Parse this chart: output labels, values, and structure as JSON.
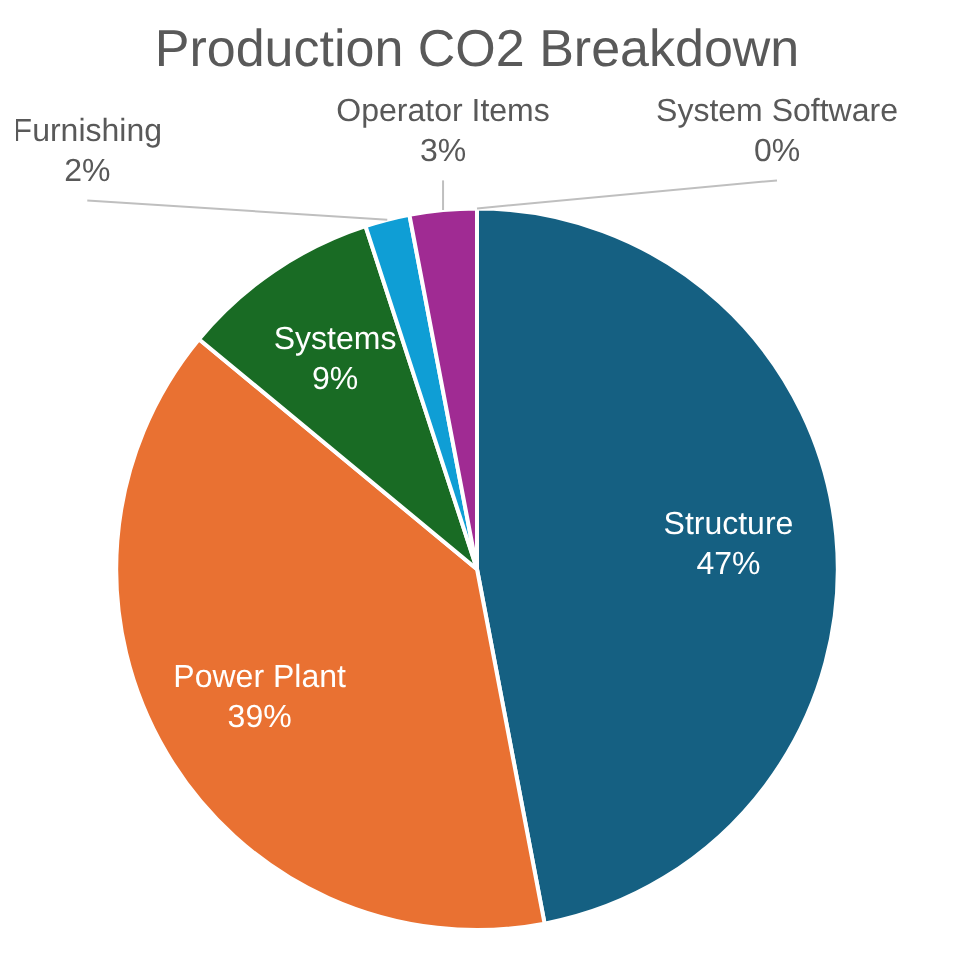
{
  "chart_data": {
    "type": "pie",
    "title": "Production CO2 Breakdown",
    "categories": [
      "Structure",
      "Power Plant",
      "Systems",
      "Furnishing",
      "Operator Items",
      "System Software"
    ],
    "values": [
      47,
      39,
      9,
      2,
      3,
      0
    ],
    "value_labels": [
      "47%",
      "39%",
      "9%",
      "2%",
      "3%",
      "0%"
    ],
    "colors": [
      "#156082",
      "#e97132",
      "#196b24",
      "#0f9ed5",
      "#a02b93",
      "#4ea72e"
    ],
    "legend": false
  }
}
